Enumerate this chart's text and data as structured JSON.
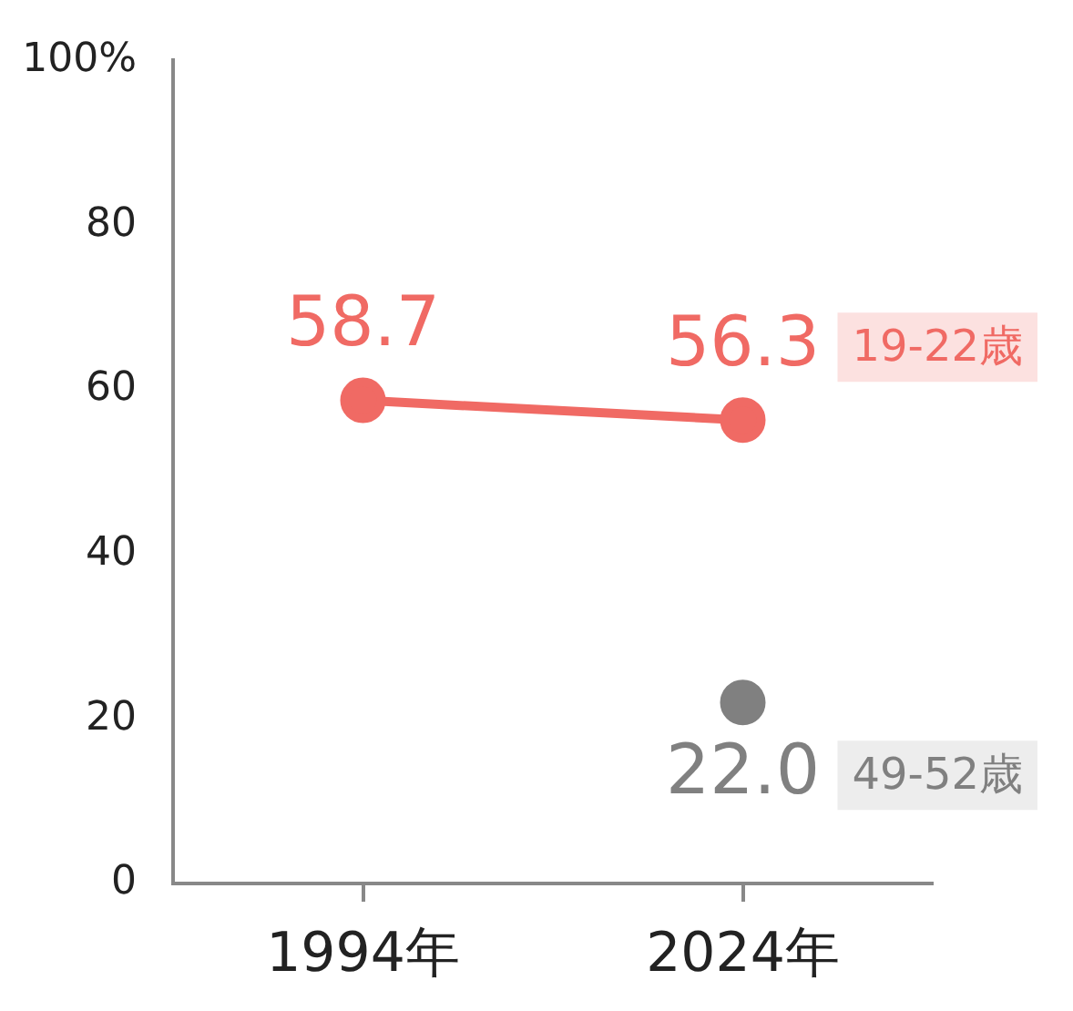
{
  "chart_data": {
    "type": "line",
    "categories": [
      "1994年",
      "2024年"
    ],
    "series": [
      {
        "name": "19-22歳",
        "color": "#f06a64",
        "values": [
          58.7,
          56.3
        ],
        "value_labels": [
          "58.7",
          "56.3"
        ]
      },
      {
        "name": "49-52歳",
        "color": "#808080",
        "values": [
          null,
          22.0
        ],
        "value_labels": [
          null,
          "22.0"
        ]
      }
    ],
    "ylim": [
      0,
      100
    ],
    "yticks": [
      0,
      20,
      40,
      60,
      80,
      {
        "value": 100,
        "label": "100%"
      }
    ],
    "grid": false,
    "legend": false,
    "marker": "circle",
    "line_style": "solid"
  }
}
